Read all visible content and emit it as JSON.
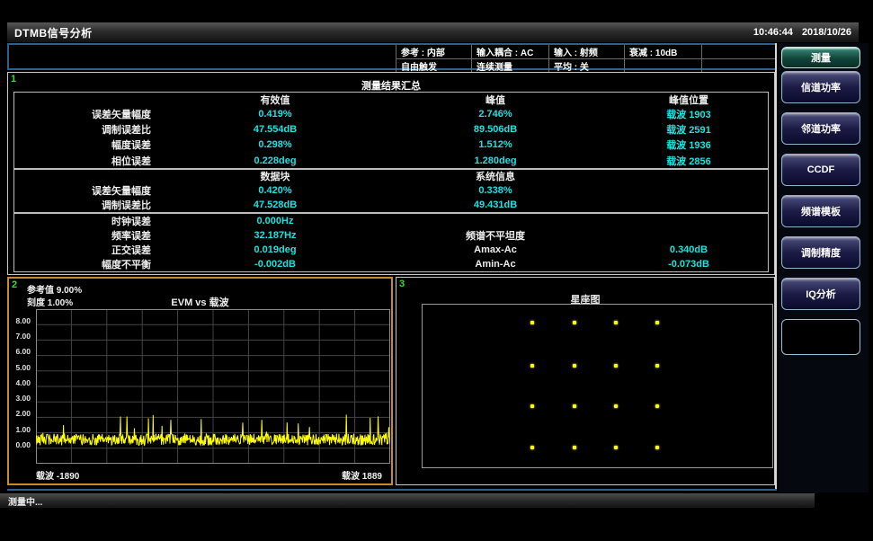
{
  "titlebar": {
    "title": "DTMB信号分析",
    "time": "10:46:44",
    "date": "2018/10/26"
  },
  "header": {
    "row1": [
      "参考 : 内部",
      "输入耦合 : AC",
      "输入 : 射频",
      "衰减 : 10dB",
      ""
    ],
    "row2": [
      "自由触发",
      "连续测量",
      "平均 : 关",
      "",
      ""
    ]
  },
  "sidebar": {
    "buttons": [
      {
        "label": "测量",
        "active": true
      },
      {
        "label": "信道功率",
        "active": false
      },
      {
        "label": "邻道功率",
        "active": false
      },
      {
        "label": "CCDF",
        "active": false
      },
      {
        "label": "频谱模板",
        "active": false
      },
      {
        "label": "调制精度",
        "active": false
      },
      {
        "label": "IQ分析",
        "active": false
      },
      {
        "label": "",
        "active": false
      }
    ]
  },
  "summary_panel": {
    "marker": "1",
    "title": "测量结果汇总",
    "columns": [
      "有效值",
      "峰值",
      "峰值位置"
    ],
    "rows": [
      {
        "label": "误差矢量幅度",
        "rms": "0.419%",
        "peak": "2.746%",
        "peak_pos": "载波 1903"
      },
      {
        "label": "调制误差比",
        "rms": "47.554dB",
        "peak": "89.506dB",
        "peak_pos": "载波 2591"
      },
      {
        "label": "幅度误差",
        "rms": "0.298%",
        "peak": "1.512%",
        "peak_pos": "载波 1936"
      },
      {
        "label": "相位误差",
        "rms": "0.228deg",
        "peak": "1.280deg",
        "peak_pos": "载波 2856"
      }
    ],
    "section2": {
      "columns": [
        "数据块",
        "系统信息"
      ],
      "rows": [
        {
          "label": "误差矢量幅度",
          "data_block": "0.420%",
          "system_info": "0.338%"
        },
        {
          "label": "调制误差比",
          "data_block": "47.528dB",
          "system_info": "49.431dB"
        }
      ]
    },
    "section3": {
      "left_rows": [
        {
          "label": "时钟误差",
          "value": "0.000Hz"
        },
        {
          "label": "频率误差",
          "value": "32.187Hz"
        },
        {
          "label": "正交误差",
          "value": "0.019deg"
        },
        {
          "label": "幅度不平衡",
          "value": "-0.002dB"
        }
      ],
      "right_header": "频谱不平坦度",
      "right_rows": [
        {
          "label": "Amax-Ac",
          "value": "0.340dB"
        },
        {
          "label": "Amin-Ac",
          "value": "-0.073dB"
        }
      ]
    }
  },
  "evm_panel": {
    "marker": "2",
    "ref_label": "参考值 9.00%",
    "scale_label": "刻度 1.00%",
    "title": "EVM vs 载波",
    "x_left": "载波 -1890",
    "x_right": "载波 1889",
    "y_ticks": [
      "8.00",
      "7.00",
      "6.00",
      "5.00",
      "4.00",
      "3.00",
      "2.00",
      "1.00",
      "0.00"
    ]
  },
  "constellation_panel": {
    "marker": "3",
    "title": "星座图"
  },
  "status_bar": {
    "text": "测量中..."
  },
  "colors": {
    "value_cyan": "#1ee1e1",
    "trace_yellow": "#ffff00",
    "marker_green": "#3adb3a",
    "selected_panel_orange": "#c98a2b",
    "header_blue": "#2e5f8f",
    "active_button_teal": "#114438"
  },
  "chart_data": [
    {
      "type": "line",
      "title": "EVM vs 载波",
      "xlabel_left": "载波 -1890",
      "xlabel_right": "载波 1889",
      "x_range": [
        -1890,
        1889
      ],
      "ylim": [
        -1,
        9
      ],
      "y_ticks": [
        8,
        7,
        6,
        5,
        4,
        3,
        2,
        1,
        0
      ],
      "reference_value_pct": 9.0,
      "scale_per_div_pct": 1.0,
      "grid": {
        "cols": 10,
        "rows": 10,
        "on": true
      },
      "series": [
        {
          "name": "EVM",
          "color": "#ffff00",
          "profile": {
            "baseline_pct": 0.45,
            "noise_amp_pct": 0.75,
            "spike_max_pct": 2.8,
            "spike_rate": 0.07,
            "points": 760,
            "seed": 42
          }
        }
      ]
    },
    {
      "type": "scatter",
      "title": "星座图",
      "modulation_grid": {
        "cols": 4,
        "rows": 4
      },
      "point_color": "#ffff00",
      "col_fractions": [
        0.313,
        0.434,
        0.552,
        0.67
      ],
      "row_fractions": [
        0.11,
        0.375,
        0.624,
        0.878
      ]
    }
  ]
}
